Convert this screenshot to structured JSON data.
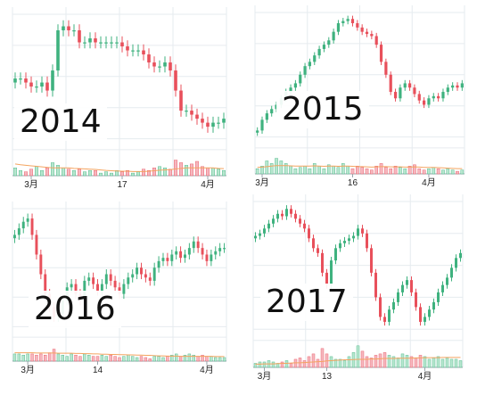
{
  "colors": {
    "up": "#3fb27f",
    "down": "#e8505b",
    "vol_up": "#b7e6cf",
    "vol_down": "#f6b7bf",
    "grid": "#e6ebef",
    "ma_line": "#f4a460",
    "axis": "#9aa5ad"
  },
  "chart_data": [
    {
      "type": "candlestick",
      "title": "2014",
      "x_ticks": [
        "3月",
        "17",
        "4月"
      ],
      "x_tick_index": [
        3,
        20,
        36
      ],
      "close": [
        58,
        58,
        57,
        56,
        56,
        57,
        55,
        60,
        70,
        71,
        70,
        70,
        67,
        67,
        68,
        67,
        67,
        67,
        67,
        67,
        66,
        65,
        65,
        65,
        64,
        62,
        61,
        61,
        62,
        60,
        55,
        50,
        50,
        49,
        48,
        47,
        46,
        47,
        47,
        48
      ],
      "volume": [
        0.3,
        0.2,
        0.15,
        0.25,
        0.35,
        0.2,
        0.3,
        0.5,
        0.4,
        0.3,
        0.25,
        0.2,
        0.25,
        0.15,
        0.2,
        0.2,
        0.1,
        0.15,
        0.1,
        0.2,
        0.15,
        0.2,
        0.1,
        0.15,
        0.25,
        0.2,
        0.3,
        0.35,
        0.3,
        0.25,
        0.6,
        0.5,
        0.4,
        0.45,
        0.55,
        0.35,
        0.3,
        0.3,
        0.25,
        0.2
      ],
      "ma": [
        0.45,
        0.42,
        0.4,
        0.38,
        0.36,
        0.34,
        0.32,
        0.3,
        0.3,
        0.3,
        0.3,
        0.28,
        0.27,
        0.26,
        0.25,
        0.24,
        0.22,
        0.2,
        0.19,
        0.18,
        0.17,
        0.17,
        0.16,
        0.16,
        0.16,
        0.17,
        0.19,
        0.21,
        0.22,
        0.23,
        0.26,
        0.28,
        0.3,
        0.3,
        0.3,
        0.3,
        0.3,
        0.3,
        0.28,
        0.27
      ]
    },
    {
      "type": "candlestick",
      "title": "2015",
      "x_ticks": [
        "3月",
        "16",
        "4月"
      ],
      "x_tick_index": [
        1,
        20,
        36
      ],
      "close": [
        40,
        45,
        48,
        50,
        52,
        55,
        58,
        60,
        62,
        66,
        70,
        72,
        75,
        78,
        80,
        82,
        86,
        90,
        91,
        92,
        90,
        88,
        86,
        85,
        84,
        80,
        72,
        66,
        58,
        55,
        60,
        62,
        60,
        57,
        54,
        52,
        55,
        56,
        55,
        58,
        60,
        61,
        60,
        62
      ],
      "volume": [
        0.2,
        0.3,
        0.5,
        0.4,
        0.6,
        0.5,
        0.4,
        0.3,
        0.2,
        0.25,
        0.3,
        0.2,
        0.4,
        0.3,
        0.2,
        0.35,
        0.3,
        0.25,
        0.4,
        0.3,
        0.2,
        0.3,
        0.25,
        0.2,
        0.15,
        0.3,
        0.4,
        0.25,
        0.2,
        0.3,
        0.25,
        0.2,
        0.3,
        0.35,
        0.2,
        0.15,
        0.2,
        0.25,
        0.2,
        0.15,
        0.2,
        0.15,
        0.1,
        0.15
      ],
      "ma": [
        0.25,
        0.26,
        0.28,
        0.3,
        0.32,
        0.32,
        0.32,
        0.31,
        0.3,
        0.3,
        0.3,
        0.3,
        0.31,
        0.3,
        0.29,
        0.3,
        0.3,
        0.29,
        0.3,
        0.3,
        0.29,
        0.28,
        0.28,
        0.27,
        0.26,
        0.27,
        0.28,
        0.28,
        0.27,
        0.27,
        0.27,
        0.26,
        0.26,
        0.27,
        0.26,
        0.25,
        0.25,
        0.25,
        0.24,
        0.23,
        0.22,
        0.21,
        0.2,
        0.2
      ]
    },
    {
      "type": "candlestick",
      "title": "2016",
      "x_ticks": [
        "3月",
        "14",
        "4月"
      ],
      "x_tick_index": [
        3,
        19,
        44
      ],
      "close": [
        70,
        72,
        74,
        75,
        70,
        64,
        58,
        52,
        48,
        45,
        46,
        50,
        54,
        55,
        52,
        50,
        56,
        57,
        55,
        53,
        55,
        58,
        56,
        54,
        52,
        55,
        57,
        58,
        60,
        58,
        57,
        56,
        60,
        62,
        63,
        62,
        64,
        65,
        63,
        64,
        66,
        68,
        66,
        64,
        62,
        64,
        65,
        66,
        66
      ],
      "volume": [
        0.3,
        0.3,
        0.25,
        0.3,
        0.3,
        0.25,
        0.3,
        0.25,
        0.35,
        0.5,
        0.3,
        0.25,
        0.2,
        0.3,
        0.25,
        0.2,
        0.3,
        0.25,
        0.2,
        0.2,
        0.25,
        0.2,
        0.25,
        0.2,
        0.15,
        0.2,
        0.25,
        0.2,
        0.15,
        0.2,
        0.15,
        0.1,
        0.2,
        0.2,
        0.15,
        0.2,
        0.25,
        0.3,
        0.2,
        0.25,
        0.3,
        0.25,
        0.2,
        0.25,
        0.2,
        0.2,
        0.15,
        0.15,
        0.15
      ],
      "ma": [
        0.35,
        0.35,
        0.35,
        0.35,
        0.35,
        0.34,
        0.34,
        0.34,
        0.34,
        0.34,
        0.33,
        0.33,
        0.33,
        0.33,
        0.32,
        0.32,
        0.31,
        0.31,
        0.3,
        0.3,
        0.29,
        0.29,
        0.28,
        0.28,
        0.27,
        0.27,
        0.26,
        0.26,
        0.25,
        0.25,
        0.24,
        0.24,
        0.23,
        0.22,
        0.22,
        0.21,
        0.21,
        0.21,
        0.2,
        0.2,
        0.2,
        0.2,
        0.2,
        0.2,
        0.2,
        0.2,
        0.19,
        0.19,
        0.19
      ]
    },
    {
      "type": "candlestick",
      "title": "2017",
      "x_ticks": [
        "3月",
        "13",
        "4月"
      ],
      "x_tick_index": [
        2,
        16,
        38
      ],
      "close": [
        75,
        76,
        78,
        80,
        82,
        84,
        83,
        86,
        84,
        82,
        80,
        78,
        74,
        70,
        68,
        60,
        55,
        65,
        70,
        72,
        73,
        74,
        75,
        78,
        76,
        70,
        60,
        50,
        42,
        40,
        45,
        48,
        52,
        55,
        57,
        52,
        46,
        40,
        42,
        45,
        48,
        52,
        55,
        58,
        62,
        66,
        68
      ],
      "volume": [
        0.15,
        0.2,
        0.2,
        0.25,
        0.2,
        0.15,
        0.2,
        0.25,
        0.15,
        0.3,
        0.35,
        0.25,
        0.4,
        0.5,
        0.3,
        0.7,
        0.5,
        0.4,
        0.3,
        0.3,
        0.25,
        0.4,
        0.55,
        0.8,
        0.6,
        0.4,
        0.35,
        0.45,
        0.5,
        0.55,
        0.45,
        0.4,
        0.35,
        0.5,
        0.45,
        0.4,
        0.35,
        0.45,
        0.4,
        0.3,
        0.35,
        0.4,
        0.3,
        0.35,
        0.3,
        0.3,
        0.25
      ],
      "ma": [
        0.12,
        0.12,
        0.13,
        0.13,
        0.13,
        0.14,
        0.15,
        0.15,
        0.16,
        0.17,
        0.17,
        0.18,
        0.19,
        0.2,
        0.21,
        0.22,
        0.24,
        0.25,
        0.26,
        0.27,
        0.28,
        0.28,
        0.29,
        0.3,
        0.3,
        0.3,
        0.31,
        0.31,
        0.32,
        0.33,
        0.33,
        0.33,
        0.34,
        0.34,
        0.34,
        0.34,
        0.35,
        0.35,
        0.36,
        0.36,
        0.36,
        0.36,
        0.37,
        0.37,
        0.37,
        0.37,
        0.37
      ]
    }
  ]
}
